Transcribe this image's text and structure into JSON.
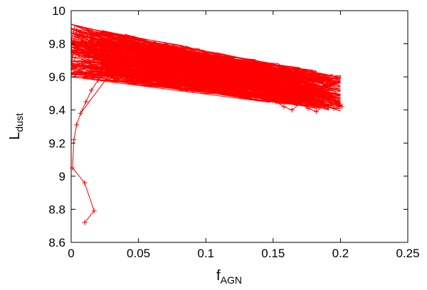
{
  "chart_data": {
    "type": "line",
    "xlabel": "f",
    "xlabel_sub": "AGN",
    "ylabel": "L",
    "ylabel_sub": "dust",
    "xlim": [
      0,
      0.25
    ],
    "ylim": [
      8.6,
      10
    ],
    "xticks": [
      "0",
      "0.05",
      "0.1",
      "0.15",
      "0.2",
      "0.25"
    ],
    "yticks": [
      "8.6",
      "8.8",
      "9",
      "9.2",
      "9.4",
      "9.6",
      "9.8",
      "10"
    ],
    "grid": false,
    "legend": "none",
    "color": "#ff0000",
    "marker": "plus",
    "series": [
      {
        "x": [
          0.01,
          0.017,
          0.01,
          0.001,
          0.002,
          0.004,
          0.007,
          0.011,
          0.015,
          0.02,
          0.026,
          0.032,
          0.04,
          0.05,
          0.062,
          0.075,
          0.09,
          0.105,
          0.118,
          0.128,
          0.138,
          0.145,
          0.152,
          0.158,
          0.164,
          0.17,
          0.176,
          0.182,
          0.188,
          0.195,
          0.201,
          0.198,
          0.186,
          0.174,
          0.16,
          0.148,
          0.134,
          0.12,
          0.104,
          0.09,
          0.075,
          0.062,
          0.048,
          0.034,
          0.022,
          0.012,
          0.004,
          0.002,
          0.008,
          0.018,
          0.03,
          0.044,
          0.058,
          0.072,
          0.086,
          0.1,
          0.114,
          0.128,
          0.142,
          0.156,
          0.17,
          0.184,
          0.196,
          0.19,
          0.178,
          0.164,
          0.15,
          0.136,
          0.122,
          0.108,
          0.094,
          0.08,
          0.066,
          0.052,
          0.038,
          0.026,
          0.014,
          0.006,
          0.003,
          0.01,
          0.02,
          0.032,
          0.046,
          0.06,
          0.074,
          0.088,
          0.102,
          0.116,
          0.13,
          0.144,
          0.158,
          0.172,
          0.186,
          0.2
        ],
        "y": [
          8.72,
          8.79,
          8.96,
          9.05,
          9.22,
          9.31,
          9.38,
          9.45,
          9.52,
          9.58,
          9.62,
          9.66,
          9.7,
          9.72,
          9.69,
          9.66,
          9.63,
          9.61,
          9.58,
          9.55,
          9.51,
          9.48,
          9.45,
          9.42,
          9.4,
          9.44,
          9.41,
          9.39,
          9.43,
          9.41,
          9.42,
          9.45,
          9.48,
          9.5,
          9.52,
          9.55,
          9.57,
          9.6,
          9.63,
          9.66,
          9.68,
          9.71,
          9.74,
          9.77,
          9.8,
          9.84,
          9.88,
          9.82,
          9.78,
          9.75,
          9.72,
          9.7,
          9.67,
          9.64,
          9.62,
          9.59,
          9.57,
          9.54,
          9.52,
          9.5,
          9.48,
          9.46,
          9.57,
          9.55,
          9.53,
          9.56,
          9.58,
          9.61,
          9.63,
          9.65,
          9.67,
          9.7,
          9.72,
          9.74,
          9.76,
          9.79,
          9.82,
          9.85,
          9.76,
          9.73,
          9.7,
          9.68,
          9.66,
          9.64,
          9.62,
          9.6,
          9.58,
          9.56,
          9.54,
          9.52,
          9.5,
          9.48,
          9.46,
          9.43
        ]
      }
    ]
  }
}
